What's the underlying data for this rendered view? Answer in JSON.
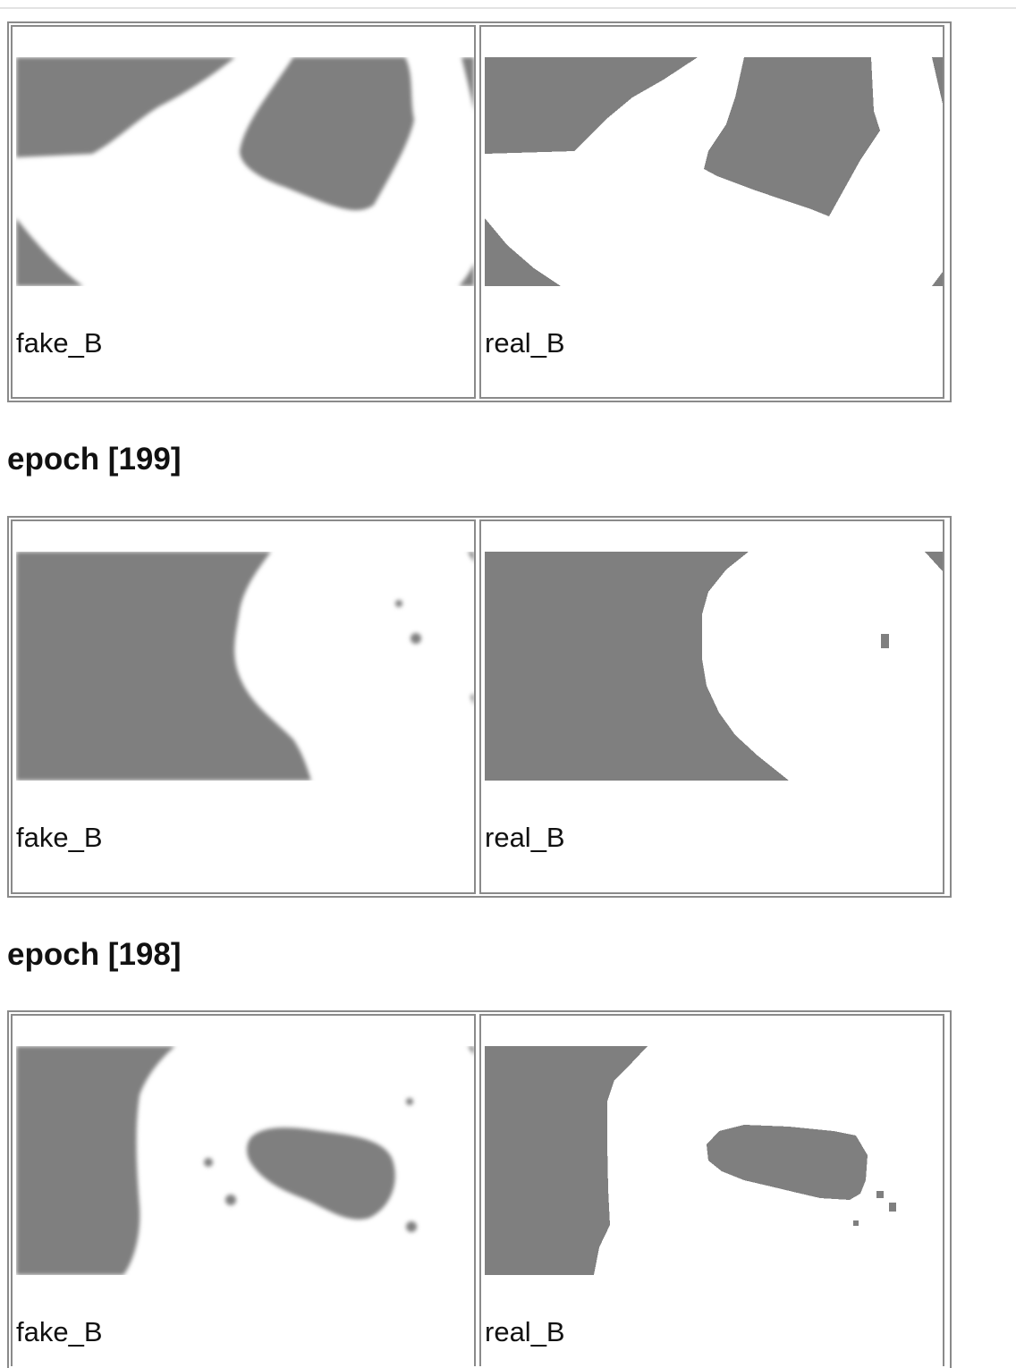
{
  "results": [
    {
      "epoch_heading": "",
      "images": [
        {
          "caption": "fake_B",
          "style": "generated-blurry"
        },
        {
          "caption": "real_B",
          "style": "ground-truth"
        }
      ]
    },
    {
      "epoch_heading": "epoch [199]",
      "images": [
        {
          "caption": "fake_B",
          "style": "generated-blurry"
        },
        {
          "caption": "real_B",
          "style": "ground-truth"
        }
      ]
    },
    {
      "epoch_heading": "epoch [198]",
      "images": [
        {
          "caption": "fake_B",
          "style": "generated-blurry"
        },
        {
          "caption": "real_B",
          "style": "ground-truth"
        }
      ]
    }
  ],
  "colors": {
    "mask_dark": "#7f7f7f",
    "mask_light": "#ffffff",
    "table_border": "#8a8a8a"
  }
}
